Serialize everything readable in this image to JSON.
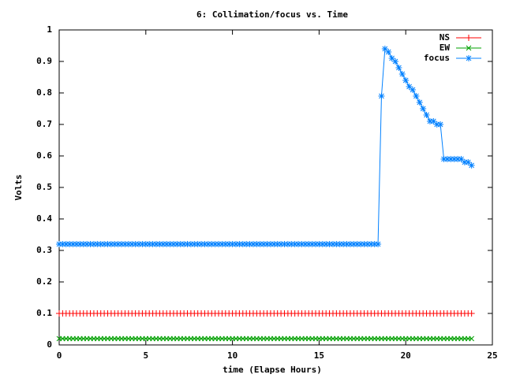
{
  "chart_data": {
    "type": "line",
    "title": "6: Collimation/focus vs. Time",
    "xlabel": "time (Elapse Hours)",
    "ylabel": "Volts",
    "xlim": [
      0,
      25
    ],
    "xticks": [
      0,
      5,
      10,
      15,
      20,
      25
    ],
    "ylim": [
      0,
      1
    ],
    "yticks": [
      0,
      0.1,
      0.2,
      0.3,
      0.4,
      0.5,
      0.6,
      0.7,
      0.8,
      0.9,
      1
    ],
    "legend": "top-right",
    "x": [
      0,
      0.2,
      0.4,
      0.6,
      0.8,
      1,
      1.2,
      1.4,
      1.6,
      1.8,
      2,
      2.2,
      2.4,
      2.6,
      2.8,
      3,
      3.2,
      3.4,
      3.6,
      3.8,
      4,
      4.2,
      4.4,
      4.6,
      4.8,
      5,
      5.2,
      5.4,
      5.6,
      5.8,
      6,
      6.2,
      6.4,
      6.6,
      6.8,
      7,
      7.2,
      7.4,
      7.6,
      7.8,
      8,
      8.2,
      8.4,
      8.6,
      8.8,
      9,
      9.2,
      9.4,
      9.6,
      9.8,
      10,
      10.2,
      10.4,
      10.6,
      10.8,
      11,
      11.2,
      11.4,
      11.6,
      11.8,
      12,
      12.2,
      12.4,
      12.6,
      12.8,
      13,
      13.2,
      13.4,
      13.6,
      13.8,
      14,
      14.2,
      14.4,
      14.6,
      14.8,
      15,
      15.2,
      15.4,
      15.6,
      15.8,
      16,
      16.2,
      16.4,
      16.6,
      16.8,
      17,
      17.2,
      17.4,
      17.6,
      17.8,
      18,
      18.2,
      18.4,
      18.6,
      18.8,
      19,
      19.2,
      19.4,
      19.6,
      19.8,
      20,
      20.2,
      20.4,
      20.6,
      20.8,
      21,
      21.2,
      21.4,
      21.6,
      21.8,
      22,
      22.2,
      22.4,
      22.6,
      22.8,
      23,
      23.2,
      23.4,
      23.6,
      23.8
    ],
    "series": [
      {
        "name": "NS",
        "color": "#ff0000",
        "marker": "plus",
        "values": [
          0.1,
          0.1,
          0.1,
          0.1,
          0.1,
          0.1,
          0.1,
          0.1,
          0.1,
          0.1,
          0.1,
          0.1,
          0.1,
          0.1,
          0.1,
          0.1,
          0.1,
          0.1,
          0.1,
          0.1,
          0.1,
          0.1,
          0.1,
          0.1,
          0.1,
          0.1,
          0.1,
          0.1,
          0.1,
          0.1,
          0.1,
          0.1,
          0.1,
          0.1,
          0.1,
          0.1,
          0.1,
          0.1,
          0.1,
          0.1,
          0.1,
          0.1,
          0.1,
          0.1,
          0.1,
          0.1,
          0.1,
          0.1,
          0.1,
          0.1,
          0.1,
          0.1,
          0.1,
          0.1,
          0.1,
          0.1,
          0.1,
          0.1,
          0.1,
          0.1,
          0.1,
          0.1,
          0.1,
          0.1,
          0.1,
          0.1,
          0.1,
          0.1,
          0.1,
          0.1,
          0.1,
          0.1,
          0.1,
          0.1,
          0.1,
          0.1,
          0.1,
          0.1,
          0.1,
          0.1,
          0.1,
          0.1,
          0.1,
          0.1,
          0.1,
          0.1,
          0.1,
          0.1,
          0.1,
          0.1,
          0.1,
          0.1,
          0.1,
          0.1,
          0.1,
          0.1,
          0.1,
          0.1,
          0.1,
          0.1,
          0.1,
          0.1,
          0.1,
          0.1,
          0.1,
          0.1,
          0.1,
          0.1,
          0.1,
          0.1,
          0.1,
          0.1,
          0.1,
          0.1,
          0.1,
          0.1,
          0.1,
          0.1,
          0.1,
          0.1
        ]
      },
      {
        "name": "EW",
        "color": "#00a000",
        "marker": "cross",
        "values": [
          0.02,
          0.02,
          0.02,
          0.02,
          0.02,
          0.02,
          0.02,
          0.02,
          0.02,
          0.02,
          0.02,
          0.02,
          0.02,
          0.02,
          0.02,
          0.02,
          0.02,
          0.02,
          0.02,
          0.02,
          0.02,
          0.02,
          0.02,
          0.02,
          0.02,
          0.02,
          0.02,
          0.02,
          0.02,
          0.02,
          0.02,
          0.02,
          0.02,
          0.02,
          0.02,
          0.02,
          0.02,
          0.02,
          0.02,
          0.02,
          0.02,
          0.02,
          0.02,
          0.02,
          0.02,
          0.02,
          0.02,
          0.02,
          0.02,
          0.02,
          0.02,
          0.02,
          0.02,
          0.02,
          0.02,
          0.02,
          0.02,
          0.02,
          0.02,
          0.02,
          0.02,
          0.02,
          0.02,
          0.02,
          0.02,
          0.02,
          0.02,
          0.02,
          0.02,
          0.02,
          0.02,
          0.02,
          0.02,
          0.02,
          0.02,
          0.02,
          0.02,
          0.02,
          0.02,
          0.02,
          0.02,
          0.02,
          0.02,
          0.02,
          0.02,
          0.02,
          0.02,
          0.02,
          0.02,
          0.02,
          0.02,
          0.02,
          0.02,
          0.02,
          0.02,
          0.02,
          0.02,
          0.02,
          0.02,
          0.02,
          0.02,
          0.02,
          0.02,
          0.02,
          0.02,
          0.02,
          0.02,
          0.02,
          0.02,
          0.02,
          0.02,
          0.02,
          0.02,
          0.02,
          0.02,
          0.02,
          0.02,
          0.02,
          0.02,
          0.02
        ]
      },
      {
        "name": "focus",
        "color": "#0080ff",
        "marker": "star",
        "values": [
          0.32,
          0.32,
          0.32,
          0.32,
          0.32,
          0.32,
          0.32,
          0.32,
          0.32,
          0.32,
          0.32,
          0.32,
          0.32,
          0.32,
          0.32,
          0.32,
          0.32,
          0.32,
          0.32,
          0.32,
          0.32,
          0.32,
          0.32,
          0.32,
          0.32,
          0.32,
          0.32,
          0.32,
          0.32,
          0.32,
          0.32,
          0.32,
          0.32,
          0.32,
          0.32,
          0.32,
          0.32,
          0.32,
          0.32,
          0.32,
          0.32,
          0.32,
          0.32,
          0.32,
          0.32,
          0.32,
          0.32,
          0.32,
          0.32,
          0.32,
          0.32,
          0.32,
          0.32,
          0.32,
          0.32,
          0.32,
          0.32,
          0.32,
          0.32,
          0.32,
          0.32,
          0.32,
          0.32,
          0.32,
          0.32,
          0.32,
          0.32,
          0.32,
          0.32,
          0.32,
          0.32,
          0.32,
          0.32,
          0.32,
          0.32,
          0.32,
          0.32,
          0.32,
          0.32,
          0.32,
          0.32,
          0.32,
          0.32,
          0.32,
          0.32,
          0.32,
          0.32,
          0.32,
          0.32,
          0.32,
          0.32,
          0.32,
          0.32,
          0.79,
          0.94,
          0.93,
          0.91,
          0.9,
          0.88,
          0.86,
          0.84,
          0.82,
          0.81,
          0.79,
          0.77,
          0.75,
          0.73,
          0.71,
          0.71,
          0.7,
          0.7,
          0.59,
          0.59,
          0.59,
          0.59,
          0.59,
          0.59,
          0.58,
          0.58,
          0.57
        ]
      }
    ]
  }
}
